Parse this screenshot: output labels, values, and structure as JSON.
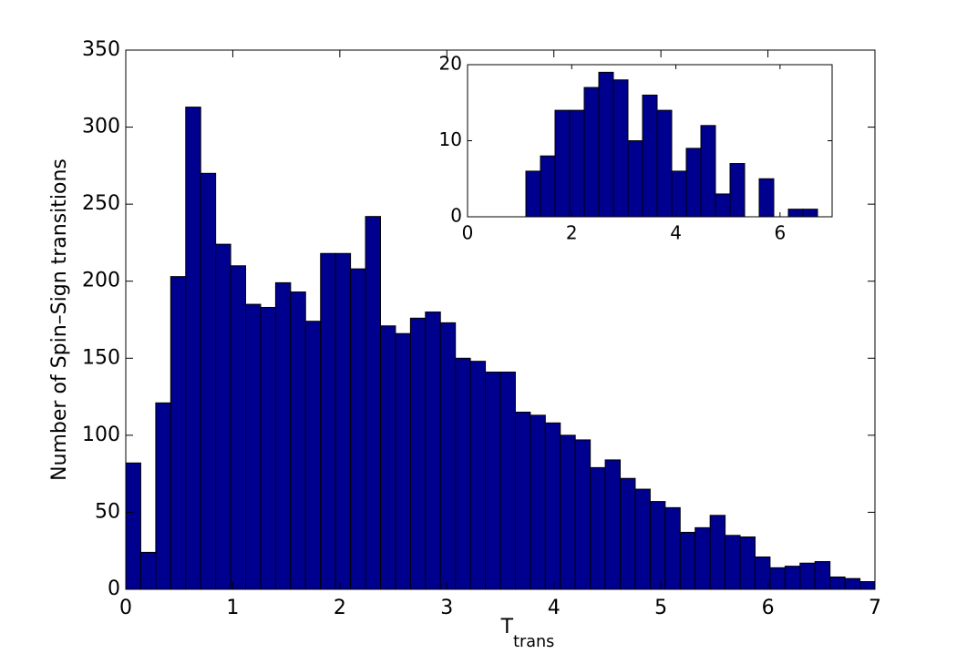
{
  "chart_data": [
    {
      "type": "histogram",
      "ylabel": "Number of Spin–Sign transitions",
      "xlabel": {
        "main": "T",
        "sub": "trans"
      },
      "bins": [
        0,
        0.14,
        0.28,
        0.42,
        0.56,
        0.7,
        0.84,
        0.98,
        1.12,
        1.26,
        1.4,
        1.54,
        1.68,
        1.82,
        1.96,
        2.1,
        2.24,
        2.38,
        2.52,
        2.66,
        2.8,
        2.94,
        3.08,
        3.22,
        3.36,
        3.5,
        3.64,
        3.78,
        3.92,
        4.06,
        4.2,
        4.34,
        4.48,
        4.62,
        4.76,
        4.9,
        5.04,
        5.18,
        5.32,
        5.46,
        5.6,
        5.74,
        5.88,
        6.02,
        6.16,
        6.3,
        6.44,
        6.58,
        6.72,
        6.86,
        7
      ],
      "values": [
        82,
        24,
        121,
        203,
        313,
        270,
        224,
        210,
        185,
        183,
        199,
        193,
        174,
        218,
        218,
        208,
        242,
        171,
        166,
        176,
        180,
        173,
        150,
        148,
        141,
        141,
        115,
        113,
        108,
        100,
        97,
        79,
        84,
        72,
        65,
        57,
        53,
        37,
        40,
        48,
        35,
        34,
        21,
        14,
        15,
        17,
        18,
        8,
        7,
        5
      ],
      "color": "#00008f",
      "xlim": [
        0,
        7
      ],
      "xticks": [
        0,
        1,
        2,
        3,
        4,
        5,
        6,
        7
      ],
      "ylim": [
        0,
        350
      ],
      "yticks": [
        0,
        50,
        100,
        150,
        200,
        250,
        300,
        350
      ]
    },
    {
      "type": "histogram",
      "bins": [
        0,
        0.28,
        0.56,
        0.84,
        1.12,
        1.4,
        1.68,
        1.96,
        2.24,
        2.52,
        2.8,
        3.08,
        3.36,
        3.64,
        3.92,
        4.2,
        4.48,
        4.76,
        5.04,
        5.32,
        5.6,
        5.88,
        6.16,
        6.44,
        6.72,
        7
      ],
      "values": [
        0,
        0,
        0,
        0,
        6,
        8,
        14,
        14,
        17,
        19,
        18,
        10,
        16,
        14,
        6,
        9,
        12,
        3,
        7,
        0,
        5,
        0,
        1,
        1,
        0
      ],
      "color": "#00008f",
      "xlim": [
        0,
        7
      ],
      "xticks": [
        0,
        2,
        4,
        6
      ],
      "ylim": [
        0,
        20
      ],
      "yticks": [
        0,
        10,
        20
      ]
    }
  ]
}
